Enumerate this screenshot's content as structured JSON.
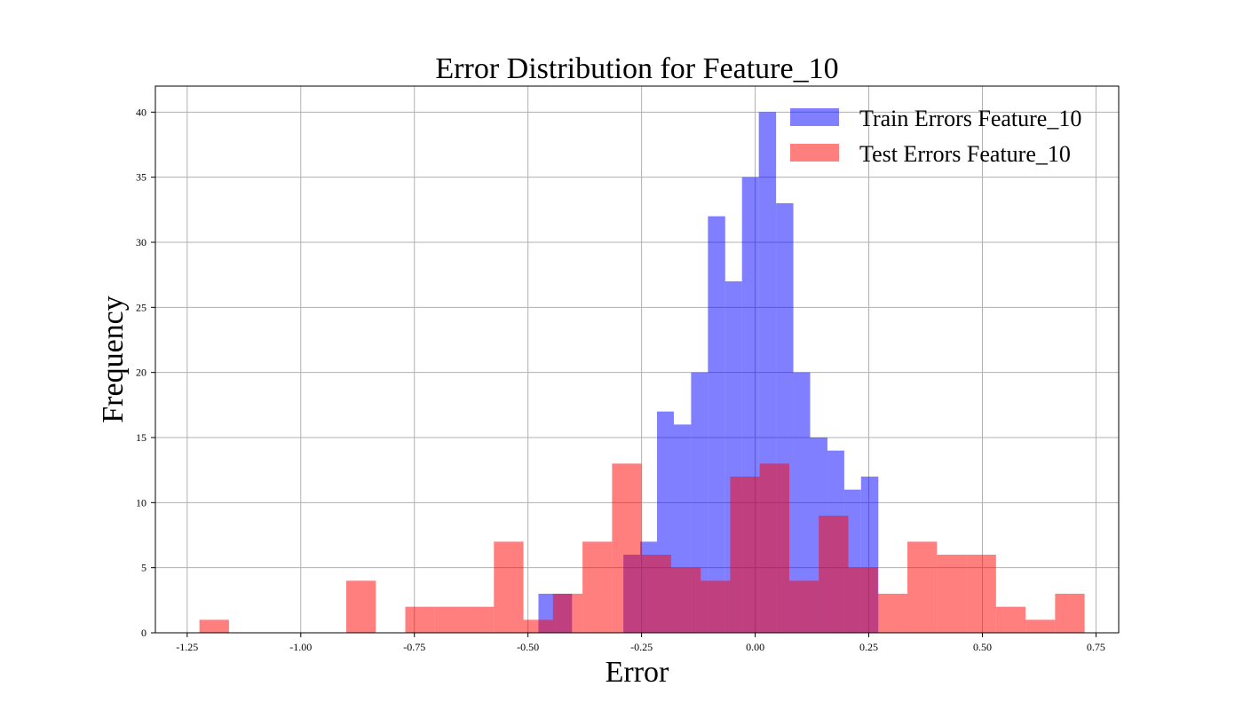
{
  "chart_data": {
    "type": "histogram",
    "title": "Error Distribution for Feature_10",
    "xlabel": "Error",
    "ylabel": "Frequency",
    "xlim": [
      -1.32,
      0.8
    ],
    "ylim": [
      0,
      42
    ],
    "grid": true,
    "legend_position": "top-right",
    "x_ticks": [
      -1.25,
      -1.0,
      -0.75,
      -0.5,
      -0.25,
      0.0,
      0.25,
      0.5,
      0.75
    ],
    "x_tick_labels": [
      "-1.25",
      "-1.00",
      "-0.75",
      "-0.50",
      "-0.25",
      "0.00",
      "0.25",
      "0.50",
      "0.75"
    ],
    "y_ticks": [
      0,
      5,
      10,
      15,
      20,
      25,
      30,
      35,
      40
    ],
    "y_tick_labels": [
      "0",
      "5",
      "10",
      "15",
      "20",
      "25",
      "30",
      "35",
      "40"
    ],
    "series": [
      {
        "name": "Train Errors Feature_10",
        "color": "#0000ff",
        "opacity": 0.5,
        "bins": [
          [
            -0.477,
            -0.44,
            3
          ],
          [
            -0.44,
            -0.403,
            3
          ],
          [
            -0.29,
            -0.253,
            6
          ],
          [
            -0.253,
            -0.216,
            7
          ],
          [
            -0.216,
            -0.179,
            17
          ],
          [
            -0.179,
            -0.141,
            16
          ],
          [
            -0.141,
            -0.104,
            20
          ],
          [
            -0.104,
            -0.066,
            32
          ],
          [
            -0.066,
            -0.029,
            27
          ],
          [
            -0.029,
            0.008,
            35
          ],
          [
            0.008,
            0.046,
            40
          ],
          [
            0.046,
            0.084,
            33
          ],
          [
            0.084,
            0.121,
            20
          ],
          [
            0.121,
            0.159,
            15
          ],
          [
            0.159,
            0.196,
            14
          ],
          [
            0.196,
            0.233,
            11
          ],
          [
            0.233,
            0.271,
            12
          ]
        ]
      },
      {
        "name": "Test Errors Feature_10",
        "color": "#ff0000",
        "opacity": 0.5,
        "bins": [
          [
            -1.223,
            -1.158,
            1
          ],
          [
            -0.9,
            -0.835,
            4
          ],
          [
            -0.77,
            -0.705,
            2
          ],
          [
            -0.705,
            -0.64,
            2
          ],
          [
            -0.64,
            -0.575,
            2
          ],
          [
            -0.575,
            -0.51,
            7
          ],
          [
            -0.51,
            -0.445,
            1
          ],
          [
            -0.445,
            -0.38,
            3
          ],
          [
            -0.38,
            -0.315,
            7
          ],
          [
            -0.315,
            -0.25,
            13
          ],
          [
            -0.25,
            -0.185,
            6
          ],
          [
            -0.185,
            -0.12,
            5
          ],
          [
            -0.12,
            -0.055,
            4
          ],
          [
            -0.055,
            0.01,
            12
          ],
          [
            0.01,
            0.075,
            13
          ],
          [
            0.075,
            0.14,
            4
          ],
          [
            0.14,
            0.205,
            9
          ],
          [
            0.205,
            0.27,
            5
          ],
          [
            0.27,
            0.335,
            3
          ],
          [
            0.335,
            0.4,
            7
          ],
          [
            0.4,
            0.465,
            6
          ],
          [
            0.465,
            0.53,
            6
          ],
          [
            0.53,
            0.595,
            2
          ],
          [
            0.595,
            0.66,
            1
          ],
          [
            0.66,
            0.725,
            3
          ]
        ]
      }
    ]
  }
}
